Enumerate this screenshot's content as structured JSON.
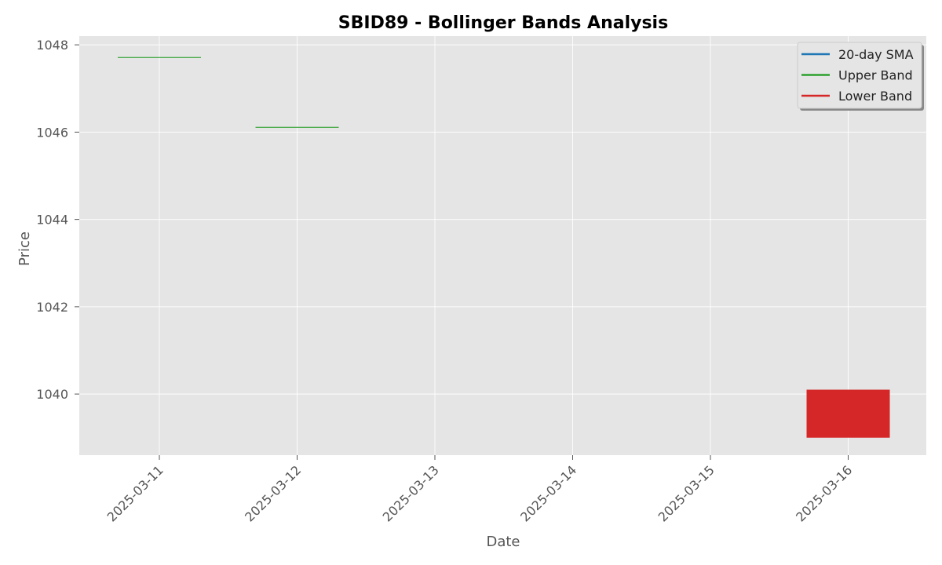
{
  "chart_data": {
    "type": "bar",
    "title": "SBID89 - Bollinger Bands Analysis",
    "xlabel": "Date",
    "ylabel": "Price",
    "x_ticks": [
      "2025-03-11",
      "2025-03-12",
      "2025-03-13",
      "2025-03-14",
      "2025-03-15",
      "2025-03-16"
    ],
    "y_ticks": [
      1040,
      1042,
      1044,
      1046,
      1048
    ],
    "ylim": [
      1038.6,
      1048.2
    ],
    "grid": true,
    "legend_position": "top-right",
    "background_color": "#e5e5e5",
    "series": [
      {
        "name": "20-day SMA",
        "color": "#1f77b4",
        "points": []
      },
      {
        "name": "Upper Band",
        "color": "#2ca02c",
        "points": [
          {
            "date": "2025-03-11",
            "bottom": 1047.7,
            "top": 1047.72
          },
          {
            "date": "2025-03-12",
            "bottom": 1046.1,
            "top": 1046.12
          }
        ]
      },
      {
        "name": "Lower Band",
        "color": "#d62728",
        "points": [
          {
            "date": "2025-03-16",
            "bottom": 1039.0,
            "top": 1040.1
          }
        ]
      }
    ]
  }
}
